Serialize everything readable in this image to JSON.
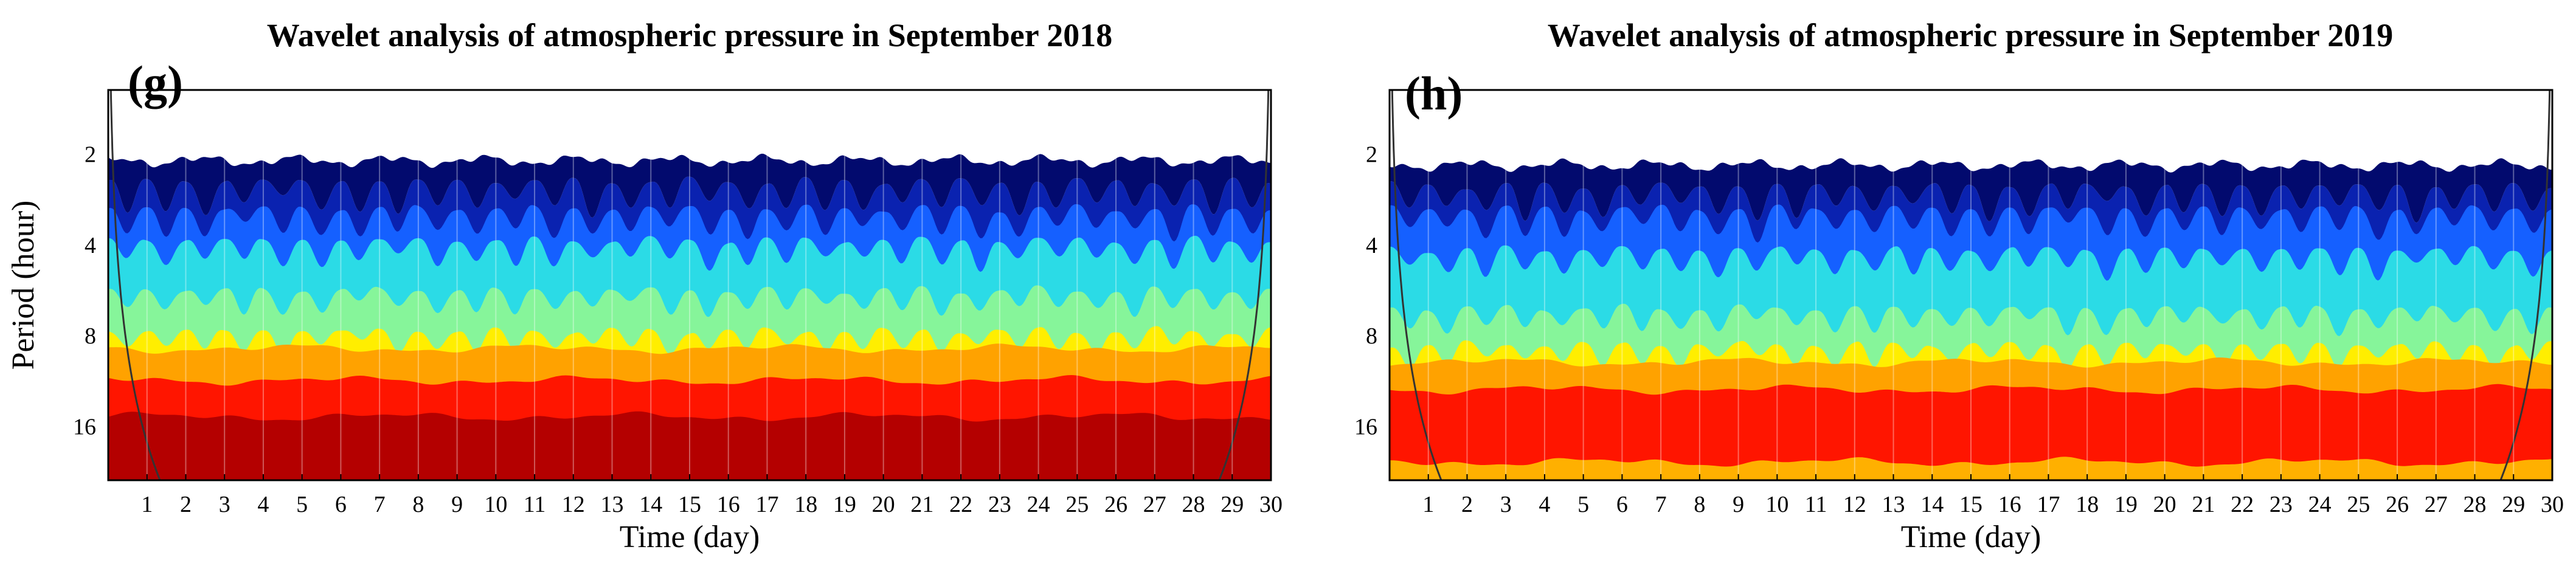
{
  "chart_data": [
    {
      "type": "heatmap",
      "panel_label": "(g)",
      "title": "Wavelet analysis of atmospheric pressure in September 2018",
      "xlabel": "Time (day)",
      "ylabel": "Period (hour)",
      "xlim": [
        0,
        30
      ],
      "ylim_log2_hours": [
        0.3,
        4.6
      ],
      "x_ticks": [
        1,
        2,
        3,
        4,
        5,
        6,
        7,
        8,
        9,
        10,
        11,
        12,
        13,
        14,
        15,
        16,
        17,
        18,
        19,
        20,
        21,
        22,
        23,
        24,
        25,
        26,
        27,
        28,
        29,
        30
      ],
      "y_ticks": [
        2,
        4,
        8,
        16
      ],
      "levels_log2_period": [
        1.3,
        1.6,
        1.95,
        2.5,
        2.95,
        3.15,
        3.5,
        3.9
      ],
      "level_colors": [
        "#020a6e",
        "#0a22b0",
        "#1560ff",
        "#2bdbe6",
        "#86f59a",
        "#ffee00",
        "#ffa200",
        "#ff1500",
        "#b40000"
      ]
    },
    {
      "type": "heatmap",
      "panel_label": "(h)",
      "title": "Wavelet analysis of atmospheric pressure in September 2019",
      "xlabel": "Time (day)",
      "ylabel": "",
      "xlim": [
        0,
        30
      ],
      "ylim_log2_hours": [
        0.3,
        4.6
      ],
      "x_ticks": [
        1,
        2,
        3,
        4,
        5,
        6,
        7,
        8,
        9,
        10,
        11,
        12,
        13,
        14,
        15,
        16,
        17,
        18,
        19,
        20,
        21,
        22,
        23,
        24,
        25,
        26,
        27,
        28,
        29,
        30
      ],
      "y_ticks": [
        2,
        4,
        8,
        16
      ],
      "levels_log2_period": [
        1.35,
        1.6,
        2.05,
        2.7,
        3.1,
        3.3,
        3.6,
        4.4
      ],
      "level_colors": [
        "#020a6e",
        "#0a22b0",
        "#1560ff",
        "#2bdbe6",
        "#86f59a",
        "#ffee00",
        "#ffa200",
        "#ff1500",
        "#ffb000"
      ]
    }
  ]
}
